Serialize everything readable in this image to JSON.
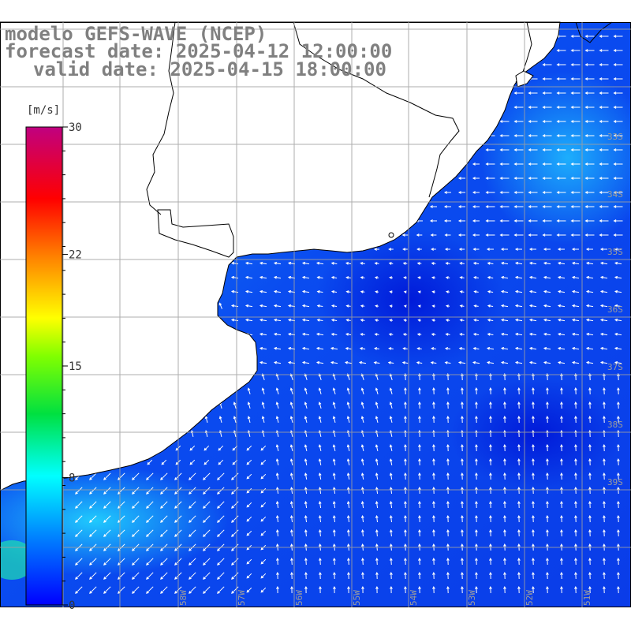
{
  "title": {
    "line1": "modelo GEFS-WAVE (NCEP)",
    "line2": "forecast date: 2025-04-12 12:00:00",
    "line3": "valid date: 2025-04-15 18:00:00"
  },
  "colorbar": {
    "unit": "[m/s]",
    "ticks": [
      {
        "label": "30",
        "value": 30
      },
      {
        "label": "22",
        "value": 22
      },
      {
        "label": "15",
        "value": 15
      },
      {
        "label": "8",
        "value": 8
      },
      {
        "label": "0",
        "value": 0
      }
    ],
    "range": [
      0,
      30
    ],
    "colors": [
      "#0000ff",
      "#0080ff",
      "#00ffff",
      "#00ff00",
      "#ffff00",
      "#ff8000",
      "#ff0000",
      "#c00080"
    ]
  },
  "map": {
    "lat_labels": [
      "33S",
      "34S",
      "35S",
      "36S",
      "37S",
      "38S",
      "39S"
    ],
    "lon_labels": [
      "58W",
      "57W",
      "56W",
      "55W",
      "54W",
      "53W",
      "52W",
      "51W"
    ],
    "ocean_color": "#0a4cf0",
    "land_color": "#ffffff",
    "grid_color": "#a0a0a0",
    "arrow_color": "#ffffff"
  }
}
